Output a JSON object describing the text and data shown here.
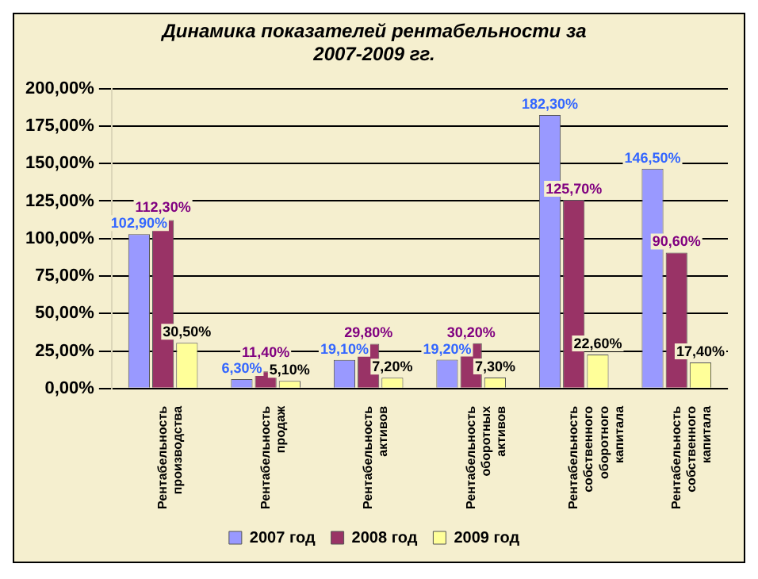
{
  "chart_data": {
    "type": "bar",
    "title": "Динамика показателей рентабельности за 2007-2009 гг.",
    "categories": [
      "Рентабельность производства",
      "Рентабельность продаж",
      "Рентабельность активов",
      "Рентабельность оборотных активов",
      "Рентабельность собственного оборотного капитала",
      "Рентабельность собственного капитала"
    ],
    "series": [
      {
        "name": "2007 год",
        "color": "#9999ff",
        "values": [
          102.9,
          6.3,
          19.1,
          19.2,
          182.3,
          146.5
        ],
        "value_labels": [
          "102,90%",
          "6,30%",
          "19,10%",
          "19,20%",
          "182,30%",
          "146,50%"
        ]
      },
      {
        "name": "2008 год",
        "color": "#993366",
        "values": [
          112.3,
          11.4,
          29.8,
          30.2,
          125.7,
          90.6
        ],
        "value_labels": [
          "112,30%",
          "11,40%",
          "29,80%",
          "30,20%",
          "125,70%",
          "90,60%"
        ]
      },
      {
        "name": "2009 год",
        "color": "#ffff99",
        "values": [
          30.5,
          5.1,
          7.2,
          7.3,
          22.6,
          17.4
        ],
        "value_labels": [
          "30,50%",
          "5,10%",
          "7,20%",
          "7,30%",
          "22,60%",
          "17,40%"
        ]
      }
    ],
    "ylim": [
      0,
      200
    ],
    "yticks": [
      {
        "value": 0,
        "label": "0,00%"
      },
      {
        "value": 25,
        "label": "25,00%"
      },
      {
        "value": 50,
        "label": "50,00%"
      },
      {
        "value": 75,
        "label": "75,00%"
      },
      {
        "value": 100,
        "label": "100,00%"
      },
      {
        "value": 125,
        "label": "125,00%"
      },
      {
        "value": 150,
        "label": "150,00%"
      },
      {
        "value": 175,
        "label": "175,00%"
      },
      {
        "value": 200,
        "label": "200,00%"
      }
    ],
    "grid": "y",
    "legend": "bottom"
  }
}
